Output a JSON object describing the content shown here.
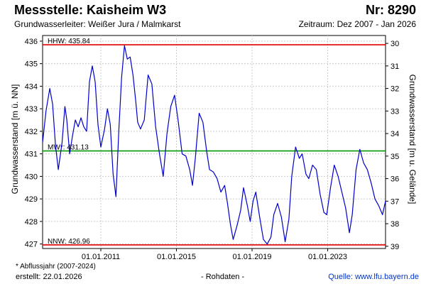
{
  "header": {
    "title": "Messstelle: Kaisheim W3",
    "number": "Nr: 8290",
    "aquifer": "Grundwasserleiter:   Weißer Jura / Malmkarst",
    "period": "Zeitraum: Dez 2007 - Jan 2026"
  },
  "footer": {
    "note": "* Abflussjahr (2007-2024)",
    "created": "erstellt:  22.01.2026",
    "raw": "- Rohdaten -",
    "source": "Quelle: www.lfu.bayern.de"
  },
  "colors": {
    "series": "#0000cc",
    "hhw": "#dd0000",
    "nnw": "#dd0000",
    "mw": "#009900",
    "grid": "#cccccc"
  },
  "chart_data": {
    "type": "line",
    "ylabel": "Grundwasserstand [m ü. NN]",
    "y2label": "Grundwasserstand [m u. Gelände]",
    "xlim": [
      2007.92,
      2026.06
    ],
    "ylim": [
      426.8,
      436.25
    ],
    "x_ticks": [
      {
        "x": 2011.0,
        "label": "01.01.2011"
      },
      {
        "x": 2015.0,
        "label": "01.01.2015"
      },
      {
        "x": 2019.0,
        "label": "01.01.2019"
      },
      {
        "x": 2023.0,
        "label": "01.01.2023"
      }
    ],
    "y_ticks": [
      427,
      428,
      429,
      430,
      431,
      432,
      433,
      434,
      435,
      436
    ],
    "y2_ticks": [
      30,
      31,
      32,
      33,
      34,
      35,
      36,
      37,
      38,
      39
    ],
    "y2_surface_offset": 465.9,
    "reference_lines": [
      {
        "key": "hhw",
        "label": "HHW: 435.84",
        "value": 435.84
      },
      {
        "key": "mw",
        "label": "MW*: 431.13",
        "value": 431.13
      },
      {
        "key": "nnw",
        "label": "NNW: 426.96",
        "value": 426.96
      }
    ],
    "series": [
      {
        "x": [
          2007.92,
          2008.1,
          2008.3,
          2008.45,
          2008.6,
          2008.75,
          2008.95,
          2009.1,
          2009.2,
          2009.35,
          2009.5,
          2009.65,
          2009.8,
          2009.95,
          2010.1,
          2010.25,
          2010.4,
          2010.55,
          2010.7,
          2010.85,
          2011.0,
          2011.2,
          2011.35,
          2011.5,
          2011.65,
          2011.8,
          2011.95,
          2012.1,
          2012.25,
          2012.4,
          2012.55,
          2012.7,
          2012.85,
          2012.95,
          2013.1,
          2013.3,
          2013.5,
          2013.7,
          2013.9,
          2014.1,
          2014.3,
          2014.5,
          2014.7,
          2014.9,
          2015.1,
          2015.3,
          2015.5,
          2015.7,
          2015.85,
          2016.0,
          2016.2,
          2016.4,
          2016.6,
          2016.75,
          2016.95,
          2017.15,
          2017.35,
          2017.55,
          2017.7,
          2017.85,
          2018.0,
          2018.2,
          2018.4,
          2018.55,
          2018.75,
          2018.9,
          2019.05,
          2019.2,
          2019.4,
          2019.6,
          2019.8,
          2020.0,
          2020.15,
          2020.35,
          2020.55,
          2020.75,
          2020.95,
          2021.1,
          2021.3,
          2021.5,
          2021.65,
          2021.85,
          2022.0,
          2022.2,
          2022.4,
          2022.6,
          2022.8,
          2022.95,
          2023.15,
          2023.35,
          2023.55,
          2023.75,
          2023.95,
          2024.15,
          2024.3,
          2024.5,
          2024.7,
          2024.9,
          2025.1,
          2025.3,
          2025.5,
          2025.7,
          2025.9,
          2026.06
        ],
        "values": [
          431.5,
          432.9,
          433.9,
          433.2,
          431.4,
          430.3,
          431.5,
          433.1,
          432.5,
          431.0,
          431.8,
          432.5,
          432.2,
          432.6,
          432.2,
          432.0,
          434.2,
          434.9,
          434.2,
          432.3,
          431.3,
          432.1,
          433.0,
          432.3,
          430.1,
          429.1,
          432.0,
          434.4,
          435.8,
          435.2,
          435.3,
          434.5,
          433.3,
          432.4,
          432.1,
          432.5,
          434.5,
          434.1,
          432.2,
          431.0,
          430.0,
          431.9,
          433.1,
          433.6,
          432.4,
          431.0,
          430.9,
          430.3,
          429.6,
          430.8,
          432.8,
          432.4,
          431.1,
          430.3,
          430.2,
          429.9,
          429.3,
          429.6,
          428.8,
          427.9,
          427.2,
          427.8,
          428.5,
          429.5,
          428.7,
          428.0,
          428.9,
          429.3,
          428.2,
          427.2,
          427.0,
          427.3,
          428.3,
          428.8,
          428.2,
          427.1,
          428.1,
          430.0,
          431.3,
          430.8,
          431.0,
          430.1,
          429.9,
          430.5,
          430.3,
          429.2,
          428.4,
          428.3,
          429.5,
          430.5,
          430.0,
          429.3,
          428.6,
          427.5,
          428.3,
          430.3,
          431.2,
          430.6,
          430.3,
          429.7,
          429.0,
          428.7,
          428.3,
          428.9
        ]
      }
    ]
  }
}
